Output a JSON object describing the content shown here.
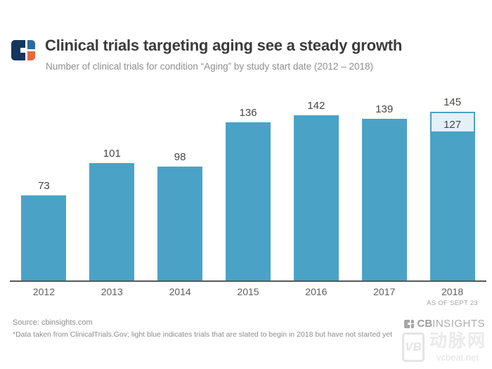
{
  "header": {
    "title": "Clinical trials targeting aging see a steady growth",
    "subtitle": "Number of clinical trials for condition “Aging” by study start date (2012 – 2018)"
  },
  "chart_data": {
    "type": "bar",
    "title": "Clinical trials targeting aging see a steady growth",
    "subtitle": "Number of clinical trials for condition “Aging” by study start date (2012 – 2018)",
    "categories": [
      "2012",
      "2013",
      "2014",
      "2015",
      "2016",
      "2017",
      "2018"
    ],
    "values_total": [
      73,
      101,
      98,
      136,
      142,
      139,
      145
    ],
    "values_started": [
      73,
      101,
      98,
      136,
      142,
      139,
      127
    ],
    "x_note": {
      "category": "2018",
      "text": "AS OF SEPT 23"
    },
    "ylim": [
      0,
      145
    ],
    "grid": false,
    "legend": "none",
    "colors": {
      "bar": "#4aa3c6",
      "pending_fill": "#e4f0f7",
      "pending_border": "#4aa3c6",
      "axis": "#57585a"
    },
    "note_meaning": "light blue = trials slated to begin in 2018 but not started yet"
  },
  "brand_colors": {
    "navy": "#14365d",
    "blue": "#2b6ca3",
    "orange": "#e5693f"
  },
  "footer": {
    "source": "Source: cbinsights.com",
    "note": "*Data taken from ClinicalTrials.Gov; light blue indicates trials that are slated to begin in 2018 but have not started yet",
    "brand_cb": "CB",
    "brand_insights": "INSIGHTS"
  },
  "watermark": {
    "logo_letters": "VB",
    "cjk_name": "动脉网",
    "domain": "vcbeat.net"
  }
}
